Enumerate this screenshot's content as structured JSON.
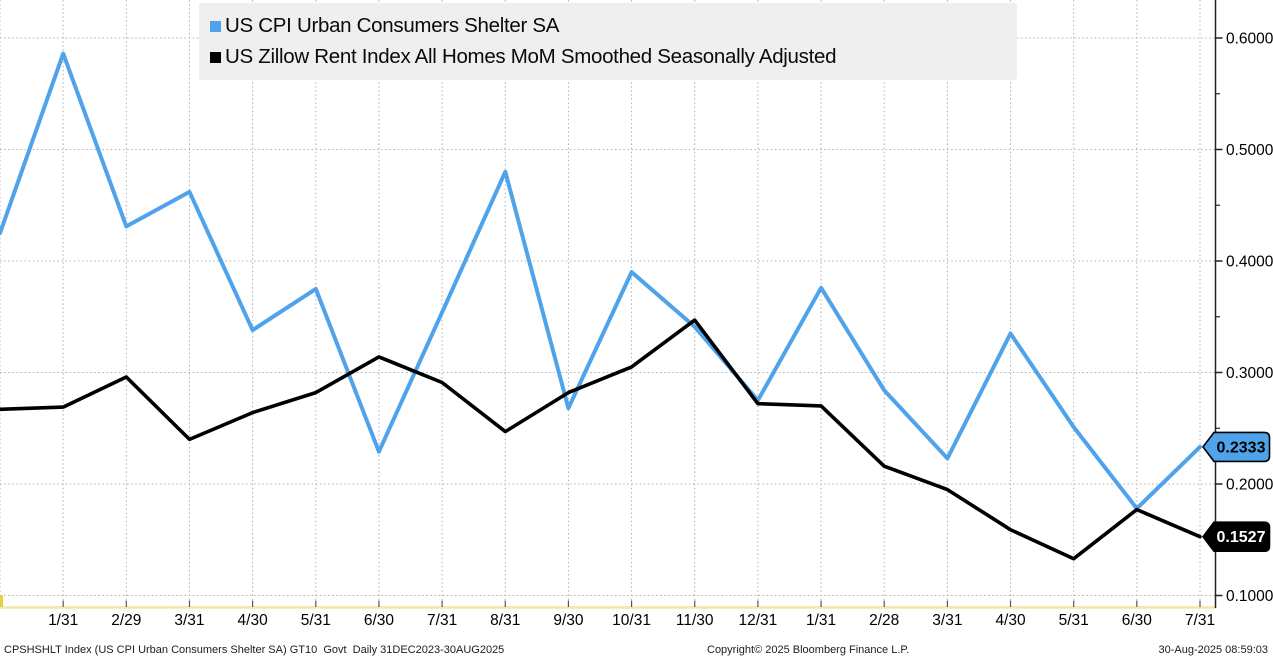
{
  "legend": {
    "series": [
      {
        "label": "US CPI Urban Consumers Shelter SA",
        "color": "#4fa3ea"
      },
      {
        "label": "US Zillow Rent Index All Homes MoM Smoothed Seasonally Adjusted",
        "color": "#000000"
      }
    ]
  },
  "y_axis": {
    "ticks": [
      {
        "label": "0.6000",
        "value": 0.6
      },
      {
        "label": "0.5000",
        "value": 0.5
      },
      {
        "label": "0.4000",
        "value": 0.4
      },
      {
        "label": "0.3000",
        "value": 0.3
      },
      {
        "label": "0.2000",
        "value": 0.2
      },
      {
        "label": "0.1000",
        "value": 0.1
      }
    ],
    "minor_values": [
      0.55,
      0.45,
      0.35,
      0.25,
      0.15
    ]
  },
  "x_axis": {
    "labels": [
      "1/31",
      "2/29",
      "3/31",
      "4/30",
      "5/31",
      "6/30",
      "7/31",
      "8/31",
      "9/30",
      "10/31",
      "11/30",
      "12/31",
      "1/31",
      "2/28",
      "3/31",
      "4/30",
      "5/31",
      "6/30",
      "7/31"
    ]
  },
  "tags": [
    {
      "text": "0.2333",
      "value": 0.2333,
      "fill": "#4fa3ea",
      "text_color": "#000000"
    },
    {
      "text": "0.1527",
      "value": 0.1527,
      "fill": "#000000",
      "text_color": "#ffffff"
    }
  ],
  "footer": {
    "left": "CPSHSHLT Index (US CPI Urban Consumers Shelter SA) GT10  Govt  Daily 31DEC2023-30AUG2025",
    "center": "Copyright© 2025 Bloomberg Finance L.P.",
    "right": "30-Aug-2025 08:59:03"
  },
  "chart_data": {
    "type": "line",
    "title": "",
    "x": [
      "12/31",
      "1/31",
      "2/29",
      "3/31",
      "4/30",
      "5/31",
      "6/30",
      "7/31",
      "8/31",
      "9/30",
      "10/31",
      "11/30",
      "12/31",
      "1/31",
      "2/28",
      "3/31",
      "4/30",
      "5/31",
      "6/30",
      "7/31"
    ],
    "frequency": "monthly points, Dec 2023 through Jul 2025",
    "series": [
      {
        "name": "US CPI Urban Consumers Shelter SA",
        "color": "#4fa3ea",
        "values": [
          0.425,
          0.586,
          0.431,
          0.462,
          0.338,
          0.375,
          0.229,
          0.354,
          0.48,
          0.268,
          0.39,
          0.341,
          0.275,
          0.376,
          0.284,
          0.223,
          0.335,
          0.251,
          0.178,
          0.2333
        ]
      },
      {
        "name": "US Zillow Rent Index All Homes MoM Smoothed Seasonally Adjusted",
        "color": "#000000",
        "values": [
          0.267,
          0.269,
          0.296,
          0.24,
          0.264,
          0.282,
          0.314,
          0.291,
          0.247,
          0.282,
          0.305,
          0.347,
          0.272,
          0.27,
          0.216,
          0.195,
          0.159,
          0.133,
          0.177,
          0.1527
        ]
      }
    ],
    "ylim": [
      0.089,
      0.634
    ],
    "y_ticks": [
      0.1,
      0.2,
      0.3,
      0.4,
      0.5,
      0.6
    ],
    "grid": "dotted, vertical at each month and horizontal at each 0.1",
    "legend_position": "top-left",
    "last_value_labels": [
      0.2333,
      0.1527
    ]
  }
}
